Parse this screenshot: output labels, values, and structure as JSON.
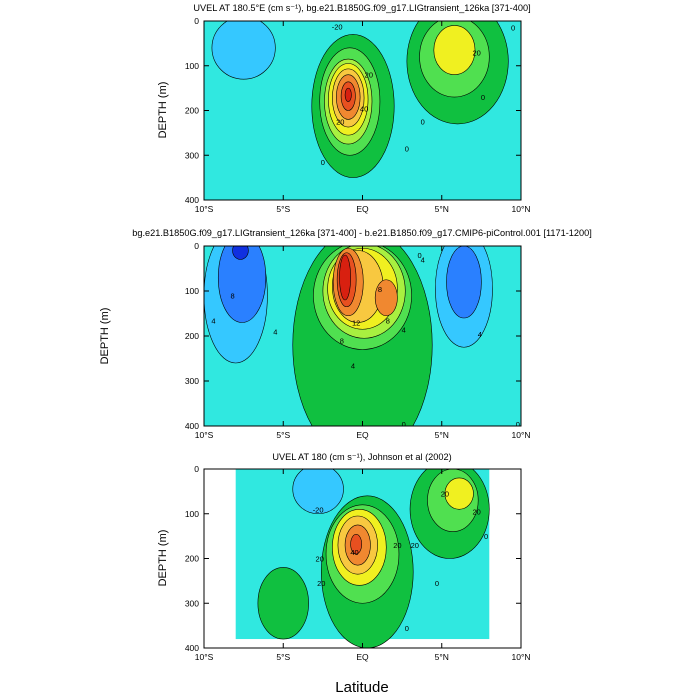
{
  "figure": {
    "xlabel": "Latitude"
  },
  "colors": {
    "palette": [
      "#1030e0",
      "#2a80ff",
      "#35c8ff",
      "#30e8e0",
      "#00d8a8",
      "#10c040",
      "#50e050",
      "#a8f040",
      "#f0f020",
      "#f8c840",
      "#f08830",
      "#e85020",
      "#d82010",
      "#b00808"
    ]
  },
  "chart_data": [
    {
      "type": "contour",
      "title": "UVEL AT 180.5°E (cm s⁻¹), bg.e21.B1850G.f09_g17.LIGtransient_126ka [371-400]",
      "xlabel": "",
      "ylabel": "DEPTH (m)",
      "xlim": [
        -10,
        10
      ],
      "ylim": [
        0,
        400
      ],
      "x_reversed": false,
      "y_reversed": true,
      "xticks": [
        "10°S",
        "5°S",
        "EQ",
        "5°N",
        "10°N"
      ],
      "yticks": [
        "0",
        "100",
        "200",
        "300",
        "400"
      ],
      "background_color": "#30e8e0",
      "contour_interval": 10,
      "features": [
        {
          "name": "eqc-outer-0",
          "lat": -0.6,
          "depth": 190,
          "rlat": 2.6,
          "rdepth": 160,
          "color": "#10c040"
        },
        {
          "name": "eqc-10",
          "lat": -0.8,
          "depth": 180,
          "rlat": 1.9,
          "rdepth": 120,
          "color": "#50e050"
        },
        {
          "name": "eqc-20",
          "lat": -0.9,
          "depth": 180,
          "rlat": 1.5,
          "rdepth": 95,
          "color": "#a8f040"
        },
        {
          "name": "eqc-30",
          "lat": -0.9,
          "depth": 175,
          "rlat": 1.25,
          "rdepth": 80,
          "color": "#f0f020"
        },
        {
          "name": "eqc-40",
          "lat": -0.9,
          "depth": 172,
          "rlat": 1.0,
          "rdepth": 65,
          "color": "#f8c840"
        },
        {
          "name": "eqc-50",
          "lat": -0.9,
          "depth": 170,
          "rlat": 0.75,
          "rdepth": 50,
          "color": "#f08830"
        },
        {
          "name": "eqc-60",
          "lat": -0.9,
          "depth": 168,
          "rlat": 0.45,
          "rdepth": 32,
          "color": "#e85020"
        },
        {
          "name": "eqc-70",
          "lat": -0.9,
          "depth": 165,
          "rlat": 0.2,
          "rdepth": 15,
          "color": "#d82010"
        },
        {
          "name": "nec-0",
          "lat": 6.0,
          "depth": 90,
          "rlat": 3.2,
          "rdepth": 140,
          "color": "#10c040"
        },
        {
          "name": "nec-10",
          "lat": 5.8,
          "depth": 80,
          "rlat": 2.2,
          "rdepth": 90,
          "color": "#50e050"
        },
        {
          "name": "nec-20",
          "lat": 5.8,
          "depth": 65,
          "rlat": 1.3,
          "rdepth": 55,
          "color": "#f0f020"
        },
        {
          "name": "sec-west-neg",
          "lat": -7.5,
          "depth": 60,
          "rlat": 2.0,
          "rdepth": 70,
          "color": "#35c8ff"
        }
      ],
      "contour_labels": [
        {
          "text": "-20",
          "lat": -1.6,
          "depth": 12
        },
        {
          "text": "20",
          "lat": 0.4,
          "depth": 120
        },
        {
          "text": "20",
          "lat": -1.4,
          "depth": 225
        },
        {
          "text": "40",
          "lat": 0.1,
          "depth": 195
        },
        {
          "text": "0",
          "lat": -2.5,
          "depth": 315
        },
        {
          "text": "0",
          "lat": 2.8,
          "depth": 285
        },
        {
          "text": "0",
          "lat": 3.8,
          "depth": 225
        },
        {
          "text": "0",
          "lat": 7.6,
          "depth": 170
        },
        {
          "text": "20",
          "lat": 7.2,
          "depth": 70
        },
        {
          "text": "0",
          "lat": 9.5,
          "depth": 15
        }
      ]
    },
    {
      "type": "contour",
      "title": "bg.e21.B1850G.f09_g17.LIGtransient_126ka [371-400] - b.e21.B1850.f09_g17.CMIP6-piControl.001 [1171-1200]",
      "xlabel": "",
      "ylabel": "DEPTH (m)",
      "xlim": [
        -10,
        10
      ],
      "ylim": [
        0,
        400
      ],
      "y_reversed": true,
      "xticks": [
        "10°S",
        "5°S",
        "EQ",
        "5°N",
        "10°N"
      ],
      "yticks": [
        "0",
        "100",
        "200",
        "300",
        "400"
      ],
      "background_color": "#30e8e0",
      "contour_interval": 2,
      "features": [
        {
          "name": "diff-pos-0",
          "lat": 0.0,
          "depth": 220,
          "rlat": 4.4,
          "rdepth": 260,
          "color": "#10c040"
        },
        {
          "name": "diff-pos-2",
          "lat": 0.0,
          "depth": 110,
          "rlat": 3.1,
          "rdepth": 120,
          "color": "#50e050"
        },
        {
          "name": "diff-pos-4",
          "lat": 0.1,
          "depth": 100,
          "rlat": 2.6,
          "rdepth": 105,
          "color": "#a8f040"
        },
        {
          "name": "diff-pos-6",
          "lat": 0.0,
          "depth": 95,
          "rlat": 2.2,
          "rdepth": 90,
          "color": "#f0f020"
        },
        {
          "name": "diff-pos-8",
          "lat": -0.3,
          "depth": 90,
          "rlat": 1.6,
          "rdepth": 80,
          "color": "#f8c840"
        },
        {
          "name": "diff-pos-10",
          "lat": -0.9,
          "depth": 80,
          "rlat": 0.95,
          "rdepth": 75,
          "color": "#f08830"
        },
        {
          "name": "diff-pos-10b",
          "lat": 1.5,
          "depth": 115,
          "rlat": 0.7,
          "rdepth": 40,
          "color": "#f08830"
        },
        {
          "name": "diff-pos-12",
          "lat": -1.0,
          "depth": 75,
          "rlat": 0.6,
          "rdepth": 60,
          "color": "#e85020"
        },
        {
          "name": "diff-pos-14",
          "lat": -1.1,
          "depth": 70,
          "rlat": 0.35,
          "rdepth": 50,
          "color": "#d82010"
        },
        {
          "name": "diff-neg-west-2",
          "lat": -8.0,
          "depth": 110,
          "rlat": 2.0,
          "rdepth": 150,
          "color": "#35c8ff"
        },
        {
          "name": "diff-neg-west-4",
          "lat": -7.6,
          "depth": 70,
          "rlat": 1.5,
          "rdepth": 100,
          "color": "#2a80ff"
        },
        {
          "name": "diff-neg-west-6",
          "lat": -7.7,
          "depth": 10,
          "rlat": 0.5,
          "rdepth": 20,
          "color": "#1030e0"
        },
        {
          "name": "diff-neg-east-2",
          "lat": 6.4,
          "depth": 95,
          "rlat": 1.8,
          "rdepth": 130,
          "color": "#35c8ff"
        },
        {
          "name": "diff-neg-east-4",
          "lat": 6.4,
          "depth": 80,
          "rlat": 1.1,
          "rdepth": 80,
          "color": "#2a80ff"
        }
      ],
      "contour_labels": [
        {
          "text": "8",
          "lat": -8.2,
          "depth": 110
        },
        {
          "text": "4",
          "lat": -9.4,
          "depth": 165
        },
        {
          "text": "4",
          "lat": -5.5,
          "depth": 190
        },
        {
          "text": "12",
          "lat": -0.4,
          "depth": 170
        },
        {
          "text": "8",
          "lat": 1.1,
          "depth": 95
        },
        {
          "text": "8",
          "lat": 1.6,
          "depth": 165
        },
        {
          "text": "8",
          "lat": -1.3,
          "depth": 210
        },
        {
          "text": "4",
          "lat": -0.6,
          "depth": 265
        },
        {
          "text": "4",
          "lat": 2.6,
          "depth": 185
        },
        {
          "text": "0",
          "lat": 3.6,
          "depth": 20
        },
        {
          "text": "4",
          "lat": 3.8,
          "depth": 30
        },
        {
          "text": "4",
          "lat": 7.4,
          "depth": 195
        },
        {
          "text": "0",
          "lat": 2.6,
          "depth": 395
        },
        {
          "text": "0",
          "lat": 9.8,
          "depth": 395
        }
      ]
    },
    {
      "type": "contour",
      "title": "UVEL AT 180 (cm s⁻¹), Johnson et al (2002)",
      "xlabel": "Latitude",
      "ylabel": "DEPTH (m)",
      "xlim": [
        -10,
        10
      ],
      "ylim": [
        0,
        400
      ],
      "y_reversed": true,
      "xticks": [
        "10°S",
        "5°S",
        "EQ",
        "5°N",
        "10°N"
      ],
      "yticks": [
        "0",
        "100",
        "200",
        "300",
        "400"
      ],
      "data_extent": {
        "lat_min": -8.0,
        "lat_max": 8.0,
        "depth_max": 380
      },
      "background_color": "#30e8e0",
      "contour_interval": 10,
      "features": [
        {
          "name": "obs-eqc-0",
          "lat": 0.3,
          "depth": 230,
          "rlat": 2.9,
          "rdepth": 170,
          "color": "#10c040"
        },
        {
          "name": "obs-eqc-10",
          "lat": 0.0,
          "depth": 190,
          "rlat": 2.3,
          "rdepth": 110,
          "color": "#50e050"
        },
        {
          "name": "obs-eqc-20",
          "lat": -0.2,
          "depth": 175,
          "rlat": 1.7,
          "rdepth": 85,
          "color": "#f0f020"
        },
        {
          "name": "obs-eqc-30",
          "lat": -0.3,
          "depth": 170,
          "rlat": 1.25,
          "rdepth": 65,
          "color": "#f8c840"
        },
        {
          "name": "obs-eqc-40",
          "lat": -0.3,
          "depth": 170,
          "rlat": 0.8,
          "rdepth": 45,
          "color": "#f08830"
        },
        {
          "name": "obs-eqc-50",
          "lat": -0.4,
          "depth": 168,
          "rlat": 0.35,
          "rdepth": 22,
          "color": "#e85020"
        },
        {
          "name": "obs-nec-0",
          "lat": 5.5,
          "depth": 90,
          "rlat": 2.5,
          "rdepth": 110,
          "color": "#10c040"
        },
        {
          "name": "obs-nec-10",
          "lat": 5.7,
          "depth": 70,
          "rlat": 1.6,
          "rdepth": 70,
          "color": "#50e050"
        },
        {
          "name": "obs-nec-20",
          "lat": 6.1,
          "depth": 55,
          "rlat": 0.9,
          "rdepth": 35,
          "color": "#f0f020"
        },
        {
          "name": "obs-sec-neg",
          "lat": -2.8,
          "depth": 45,
          "rlat": 1.6,
          "rdepth": 55,
          "color": "#35c8ff"
        },
        {
          "name": "obs-deep-neg",
          "lat": -5.0,
          "depth": 300,
          "rlat": 1.6,
          "rdepth": 80,
          "color": "#10c040"
        }
      ],
      "contour_labels": [
        {
          "text": "-20",
          "lat": -2.8,
          "depth": 90
        },
        {
          "text": "20",
          "lat": 5.2,
          "depth": 55
        },
        {
          "text": "20",
          "lat": 7.2,
          "depth": 95
        },
        {
          "text": "20",
          "lat": -2.7,
          "depth": 200
        },
        {
          "text": "40",
          "lat": -0.5,
          "depth": 185
        },
        {
          "text": "20",
          "lat": 2.2,
          "depth": 170
        },
        {
          "text": "20",
          "lat": 3.3,
          "depth": 170
        },
        {
          "text": "20",
          "lat": -2.6,
          "depth": 255
        },
        {
          "text": "0",
          "lat": 4.7,
          "depth": 255
        },
        {
          "text": "0",
          "lat": 7.8,
          "depth": 150
        },
        {
          "text": "0",
          "lat": 2.8,
          "depth": 355
        }
      ]
    }
  ]
}
